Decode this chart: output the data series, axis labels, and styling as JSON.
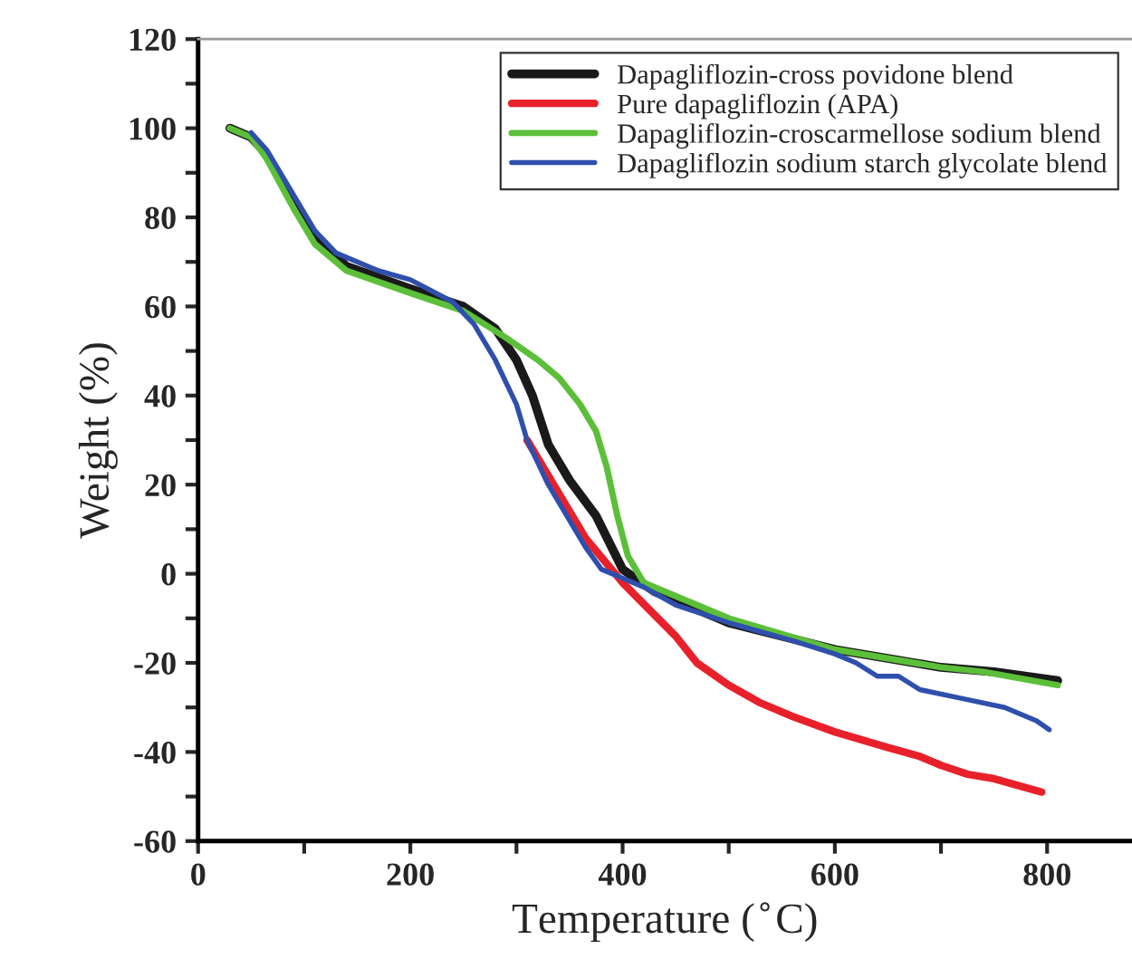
{
  "chart_data": {
    "type": "line",
    "xlabel": "Temperature ($^{∘}$C)",
    "ylabel": "Weight (%)",
    "xlim": [
      0,
      880
    ],
    "ylim": [
      -60,
      120
    ],
    "xticks": [
      0,
      {
        "value": 100,
        "label": null
      },
      200,
      {
        "value": 300,
        "label": null
      },
      400,
      {
        "value": 500,
        "label": null
      },
      600,
      {
        "value": 700,
        "label": null
      },
      800
    ],
    "yticks": [
      -60,
      {
        "value": -50,
        "label": null
      },
      -40,
      {
        "value": -30,
        "label": null
      },
      -20,
      {
        "value": -10,
        "label": null
      },
      0,
      {
        "value": 10,
        "label": null
      },
      20,
      {
        "value": 30,
        "label": null
      },
      40,
      {
        "value": 50,
        "label": null
      },
      60,
      {
        "value": 70,
        "label": null
      },
      80,
      {
        "value": 90,
        "label": null
      },
      100,
      {
        "value": 110,
        "label": null
      },
      120
    ],
    "grid": false,
    "legend": "top right",
    "marker": "none",
    "line_style": "solid",
    "series": [
      {
        "name": "Dapagliflozin-cross povidone blend",
        "color": "#1a1a1a",
        "x": [
          30,
          50,
          65,
          90,
          110,
          140,
          200,
          250,
          280,
          300,
          315,
          330,
          350,
          375,
          400,
          430,
          500,
          600,
          700,
          750,
          810
        ],
        "values": [
          100,
          98,
          94,
          83,
          76,
          69,
          64,
          60,
          55,
          48,
          40,
          29,
          21,
          13,
          1,
          -4,
          -11,
          -17,
          -21,
          -22,
          -24
        ]
      },
      {
        "name": "Pure dapagliflozin (APA)",
        "color": "#e8202a",
        "x": [
          310,
          330,
          350,
          365,
          400,
          450,
          470,
          500,
          530,
          560,
          600,
          650,
          680,
          700,
          725,
          750,
          795
        ],
        "values": [
          30,
          22,
          14,
          8,
          -2,
          -14,
          -20,
          -25,
          -29,
          -32,
          -35.5,
          -39,
          -41,
          -43,
          -45,
          -46,
          -49
        ]
      },
      {
        "name": "Dapagliflozin-croscarmellose sodium blend",
        "color": "#5cbf3a",
        "x": [
          30,
          50,
          65,
          90,
          110,
          140,
          200,
          250,
          290,
          320,
          340,
          360,
          375,
          385,
          395,
          405,
          420,
          450,
          500,
          600,
          700,
          740,
          810
        ],
        "values": [
          100,
          98,
          93,
          82,
          74,
          68,
          63,
          59,
          53,
          48,
          44,
          38,
          32,
          24,
          13,
          4,
          -2,
          -5,
          -10,
          -17,
          -21,
          -22,
          -25
        ]
      },
      {
        "name": "Dapagliflozin sodium starch glycolate blend",
        "color": "#2f4fad",
        "x": [
          50,
          65,
          90,
          110,
          130,
          170,
          200,
          240,
          260,
          280,
          300,
          310,
          330,
          350,
          365,
          380,
          400,
          420,
          450,
          500,
          560,
          600,
          620,
          640,
          660,
          680,
          720,
          760,
          790,
          802
        ],
        "values": [
          99,
          95,
          85,
          77,
          72,
          68,
          66,
          61,
          56,
          48,
          38,
          30,
          20,
          12,
          6,
          1,
          -1,
          -3,
          -7,
          -11,
          -15,
          -18,
          -20,
          -23,
          -23,
          -26,
          -28,
          -30,
          -33,
          -35
        ]
      }
    ]
  }
}
